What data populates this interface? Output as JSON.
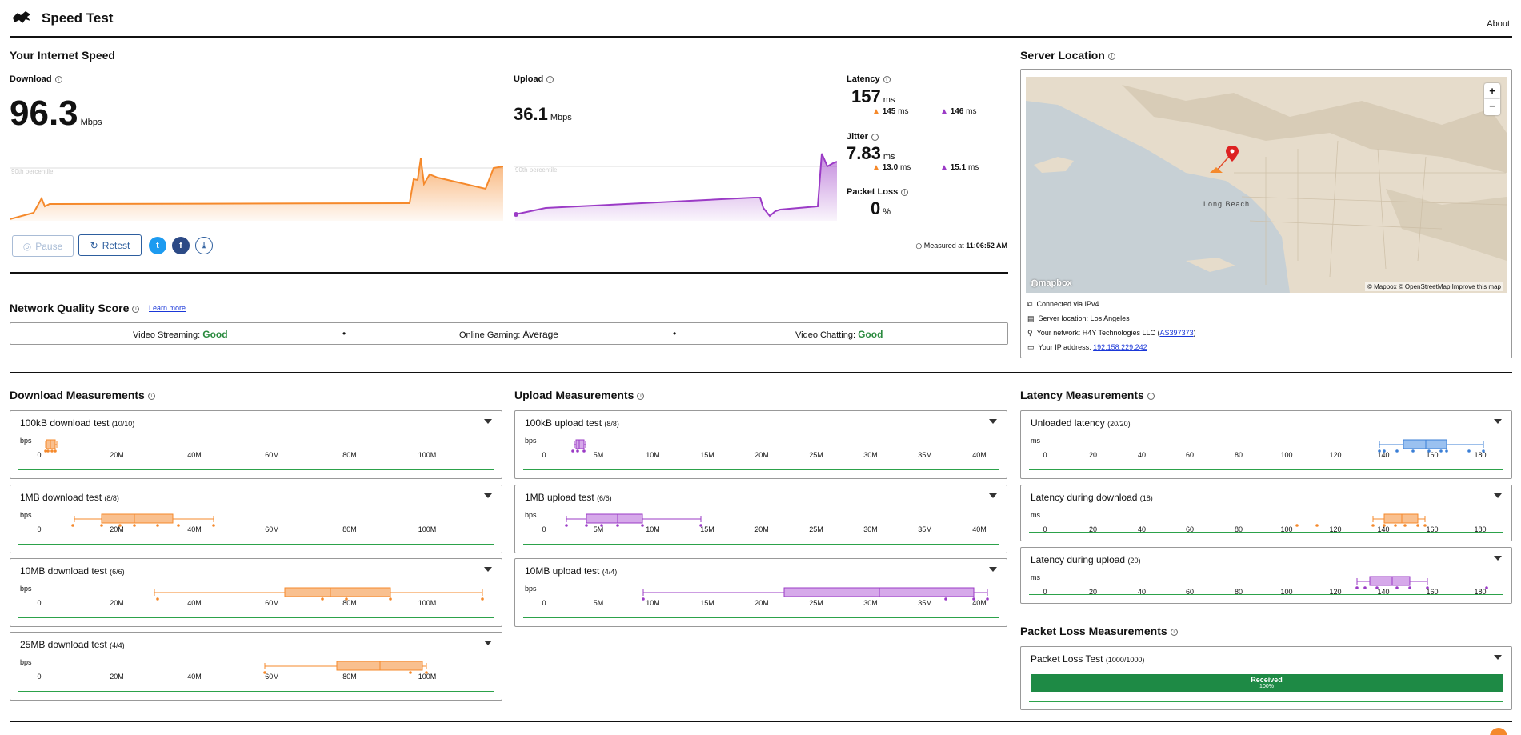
{
  "header": {
    "title": "Speed Test",
    "about": "About"
  },
  "speed": {
    "title": "Your Internet Speed",
    "download": {
      "label": "Download",
      "value": "96.3",
      "unit": "Mbps",
      "percentile": "90th percentile"
    },
    "upload": {
      "label": "Upload",
      "value": "36.1",
      "unit": "Mbps",
      "percentile": "90th percentile"
    },
    "latency": {
      "label": "Latency",
      "value": "157",
      "unit": "ms",
      "down": "145",
      "up": "146",
      "sub_unit": "ms"
    },
    "jitter": {
      "label": "Jitter",
      "value": "7.83",
      "unit": "ms",
      "down": "13.0",
      "up": "15.1",
      "sub_unit": "ms"
    },
    "packet_loss": {
      "label": "Packet Loss",
      "value": "0",
      "unit": "%"
    },
    "measured_prefix": "Measured at",
    "measured_time": "11:06:52 AM",
    "pause_label": "Pause",
    "retest_label": "Retest"
  },
  "server": {
    "title": "Server Location",
    "map_label": "Long Beach",
    "map_brand": "mapbox",
    "map_credits": "© Mapbox © OpenStreetMap Improve this map",
    "zoom_in": "+",
    "zoom_out": "−",
    "connected": "Connected via IPv4",
    "location": "Server location: Los Angeles",
    "network_prefix": "Your network: H4Y Technologies LLC (",
    "network_as": "AS397373",
    "network_suffix": ")",
    "ip_prefix": "Your IP address:",
    "ip": "192.158.229.242"
  },
  "nqs": {
    "title": "Network Quality Score",
    "learn_more": "Learn more",
    "items": [
      {
        "label": "Video Streaming:",
        "value": "Good"
      },
      {
        "label": "Online Gaming:",
        "value": "Average"
      },
      {
        "label": "Video Chatting:",
        "value": "Good"
      }
    ],
    "sep": "•"
  },
  "download_meas": {
    "title": "Download Measurements",
    "unit": "bps",
    "ticks": [
      "0",
      "20M",
      "40M",
      "60M",
      "80M",
      "100M"
    ],
    "tests": [
      {
        "name": "100kB download test",
        "count": "(10/10)"
      },
      {
        "name": "1MB download test",
        "count": "(8/8)"
      },
      {
        "name": "10MB download test",
        "count": "(6/6)"
      },
      {
        "name": "25MB download test",
        "count": "(4/4)"
      }
    ]
  },
  "upload_meas": {
    "title": "Upload Measurements",
    "unit": "bps",
    "ticks": [
      "0",
      "5M",
      "10M",
      "15M",
      "20M",
      "25M",
      "30M",
      "35M",
      "40M"
    ],
    "tests": [
      {
        "name": "100kB upload test",
        "count": "(8/8)"
      },
      {
        "name": "1MB upload test",
        "count": "(6/6)"
      },
      {
        "name": "10MB upload test",
        "count": "(4/4)"
      }
    ]
  },
  "latency_meas": {
    "title": "Latency Measurements",
    "unit": "ms",
    "ticks": [
      "0",
      "20",
      "40",
      "60",
      "80",
      "100",
      "120",
      "140",
      "160",
      "180"
    ],
    "tests": [
      {
        "name": "Unloaded latency",
        "count": "(20/20)"
      },
      {
        "name": "Latency during download",
        "count": "(18)"
      },
      {
        "name": "Latency during upload",
        "count": "(20)"
      }
    ]
  },
  "packet_meas": {
    "title": "Packet Loss Measurements",
    "test": "Packet Loss Test",
    "count": "(1000/1000)",
    "received": "Received",
    "received_pct": "100%"
  },
  "colors": {
    "download": "#f5892b",
    "upload": "#9b3bc6",
    "latency": "#3b7fd6",
    "good": "#2a8a3e"
  }
}
